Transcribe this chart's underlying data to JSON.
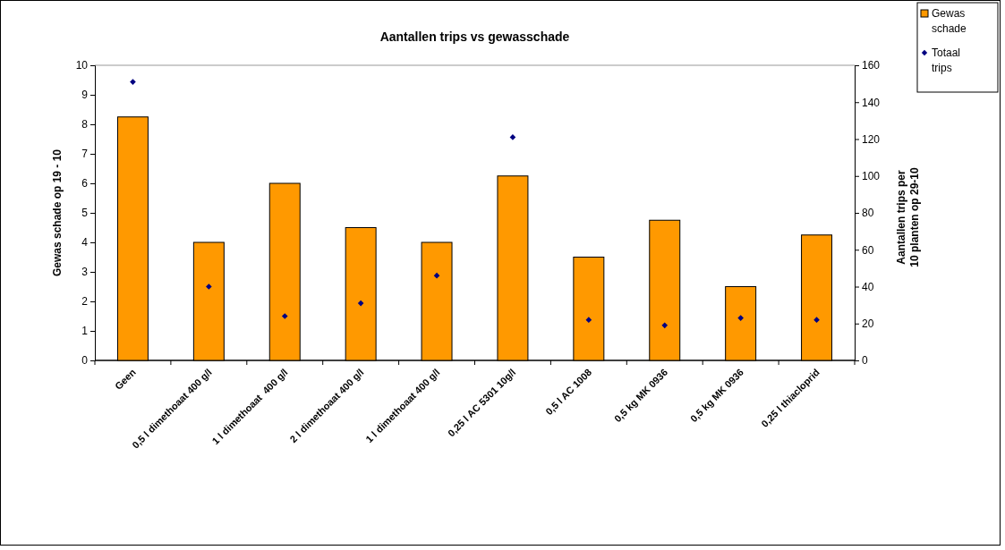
{
  "chart_data": {
    "type": "bar",
    "title": "Aantallen trips vs gewasschade",
    "ylabel": "Gewas schade op 19 - 10",
    "y2label": "Aantallen trips per\n10 planten op 29-10",
    "categories": [
      "Geen",
      "0,5 l dimethoaat 400 g/l",
      "1 l dimethoaat  400 g/l",
      "2 l dimethoaat 400 g/l",
      "1 l dimethoaat 400 g/l",
      "0,25 l AC 5301 10g/l",
      "0,5 l AC 1008",
      "0,5 kg MK 0936",
      "0,5 kg MK 0936",
      "0,25 l thiacloprid"
    ],
    "series": [
      {
        "name": "Gewas schade",
        "color": "#ff9900",
        "values": [
          8.25,
          4,
          6,
          4.5,
          4,
          6.25,
          3.5,
          4.75,
          2.5,
          4.25
        ]
      },
      {
        "name": "Totaal trips",
        "type": "scatter",
        "axis": "y2",
        "marker": "diamond",
        "color": "#000080",
        "values": [
          151,
          40,
          24,
          31,
          46,
          121,
          22,
          19,
          23,
          22
        ]
      }
    ],
    "ylim": [
      0,
      10
    ],
    "yticks": [
      0,
      1,
      2,
      3,
      4,
      5,
      6,
      7,
      8,
      9,
      10
    ],
    "y2lim": [
      0,
      160
    ],
    "y2ticks": [
      0,
      20,
      40,
      60,
      80,
      100,
      120,
      140,
      160
    ],
    "grid": false,
    "legend": "top right"
  }
}
